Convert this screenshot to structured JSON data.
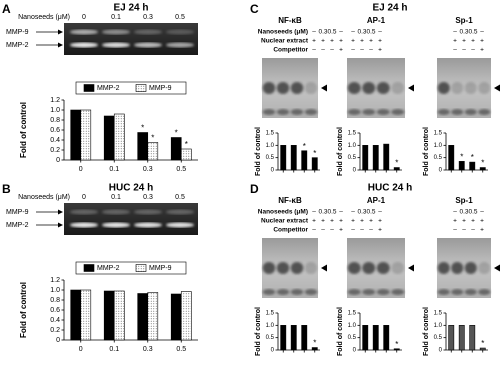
{
  "panels": [
    {
      "letter": "A",
      "title": "EJ 24 h",
      "dose_label": "Nanoseeds (μM)",
      "doses": [
        "0",
        "0.1",
        "0.3",
        "0.5"
      ],
      "bands": [
        "MMP-9",
        "MMP-2"
      ]
    },
    {
      "letter": "B",
      "title": "HUC 24 h",
      "dose_label": "Nanoseeds (μM)",
      "doses": [
        "0",
        "0.1",
        "0.3",
        "0.5"
      ],
      "bands": [
        "MMP-9",
        "MMP-2"
      ]
    },
    {
      "letter": "C",
      "title": "EJ 24 h",
      "gels": [
        "NF-κB",
        "AP-1",
        "Sp-1"
      ],
      "rows": [
        {
          "label": "Nanoseeds (μM)",
          "lanes": [
            "–",
            "0.3",
            "0.5",
            "–"
          ]
        },
        {
          "label": "Nuclear extract",
          "lanes": [
            "+",
            "+",
            "+",
            "+"
          ]
        },
        {
          "label": "Competitor",
          "lanes": [
            "–",
            "–",
            "–",
            "+"
          ]
        }
      ]
    },
    {
      "letter": "D",
      "title": "HUC 24 h",
      "gels": [
        "NF-κB",
        "AP-1",
        "Sp-1"
      ],
      "rows": [
        {
          "label": "Nanoseeds (μM)",
          "lanes": [
            "–",
            "0.3",
            "0.5",
            "–"
          ]
        },
        {
          "label": "Nuclear extract",
          "lanes": [
            "+",
            "+",
            "+",
            "+"
          ]
        },
        {
          "label": "Competitor",
          "lanes": [
            "–",
            "–",
            "–",
            "+"
          ]
        }
      ]
    }
  ],
  "chart_data": [
    {
      "type": "bar",
      "ylabel": "Fold of control",
      "categories": [
        "0",
        "0.1",
        "0.3",
        "0.5"
      ],
      "legend": "top",
      "series": [
        {
          "name": "MMP-2",
          "color": "#000000",
          "values": [
            1,
            0.88,
            0.55,
            0.45
          ],
          "markers": [
            null,
            null,
            "*",
            "*"
          ]
        },
        {
          "name": "MMP-9",
          "color": "#ffffff",
          "pattern": "dotted",
          "values": [
            1,
            0.92,
            0.35,
            0.22
          ],
          "markers": [
            null,
            null,
            "*",
            "*"
          ]
        }
      ],
      "ylim": [
        0,
        1.2
      ],
      "yticks": [
        0,
        0.2,
        0.4,
        0.6,
        0.8,
        {
          "value": 1,
          "label": "1.0"
        },
        1.2
      ]
    },
    {
      "type": "bar",
      "ylabel": "Fold of control",
      "categories": [
        "0",
        "0.1",
        "0.3",
        "0.5"
      ],
      "legend": "top",
      "series": [
        {
          "name": "MMP-2",
          "color": "#000000",
          "values": [
            1,
            0.98,
            0.93,
            0.92
          ]
        },
        {
          "name": "MMP-9",
          "color": "#ffffff",
          "pattern": "dotted",
          "values": [
            1,
            0.98,
            0.95,
            0.97
          ]
        }
      ],
      "ylim": [
        0,
        1.2
      ],
      "yticks": [
        0,
        0.2,
        0.4,
        0.6,
        0.8,
        {
          "value": 1,
          "label": "1.0"
        },
        1.2
      ]
    },
    {
      "type": "bar",
      "ylabel": "Fold of control",
      "categories": [
        null,
        null,
        null,
        null
      ],
      "color": "#000000",
      "values": [
        1,
        1,
        0.78,
        0.5
      ],
      "markers": [
        null,
        null,
        "*",
        "*"
      ],
      "ylim": [
        0,
        1.5
      ],
      "yticks": [
        0,
        0.5,
        {
          "value": 1,
          "label": "1.0"
        },
        1.5
      ]
    },
    {
      "type": "bar",
      "ylabel": "Fold of control",
      "categories": [
        null,
        null,
        null,
        null
      ],
      "color": "#000000",
      "values": [
        1,
        1,
        1.05,
        0.1
      ],
      "markers": [
        null,
        null,
        null,
        "*"
      ],
      "ylim": [
        0,
        1.5
      ],
      "yticks": [
        0,
        0.5,
        {
          "value": 1,
          "label": "1.0"
        },
        1.5
      ]
    },
    {
      "type": "bar",
      "ylabel": "Fold of control",
      "categories": [
        null,
        null,
        null,
        null
      ],
      "color": "#000000",
      "values": [
        1,
        0.35,
        0.32,
        0.1
      ],
      "markers": [
        null,
        "*",
        "*",
        "*"
      ],
      "ylim": [
        0,
        1.5
      ],
      "yticks": [
        0,
        0.5,
        {
          "value": 1,
          "label": "1.0"
        },
        1.5
      ]
    },
    {
      "type": "bar",
      "ylabel": "Fold of control",
      "categories": [
        null,
        null,
        null,
        null
      ],
      "color": "#000000",
      "values": [
        1,
        1,
        1,
        0.1
      ],
      "markers": [
        null,
        null,
        null,
        "*"
      ],
      "ylim": [
        0,
        1.5
      ],
      "yticks": [
        0,
        0.5,
        {
          "value": 1,
          "label": "1.0"
        },
        1.5
      ]
    },
    {
      "type": "bar",
      "ylabel": "Fold of control",
      "categories": [
        null,
        null,
        null,
        null
      ],
      "color": "#000000",
      "values": [
        1,
        1,
        1,
        0.05
      ],
      "markers": [
        null,
        null,
        null,
        "*"
      ],
      "ylim": [
        0,
        1.5
      ],
      "yticks": [
        0,
        0.5,
        {
          "value": 1,
          "label": "1.0"
        },
        1.5
      ]
    },
    {
      "type": "bar",
      "ylabel": "Fold of control",
      "categories": [
        null,
        null,
        null,
        null
      ],
      "color": "#555555",
      "values": [
        1,
        1,
        1,
        0.08
      ],
      "markers": [
        null,
        null,
        null,
        "*"
      ],
      "ylim": [
        0,
        1.5
      ],
      "yticks": [
        0,
        0.5,
        {
          "value": 1,
          "label": "1.0"
        },
        1.5
      ]
    }
  ]
}
